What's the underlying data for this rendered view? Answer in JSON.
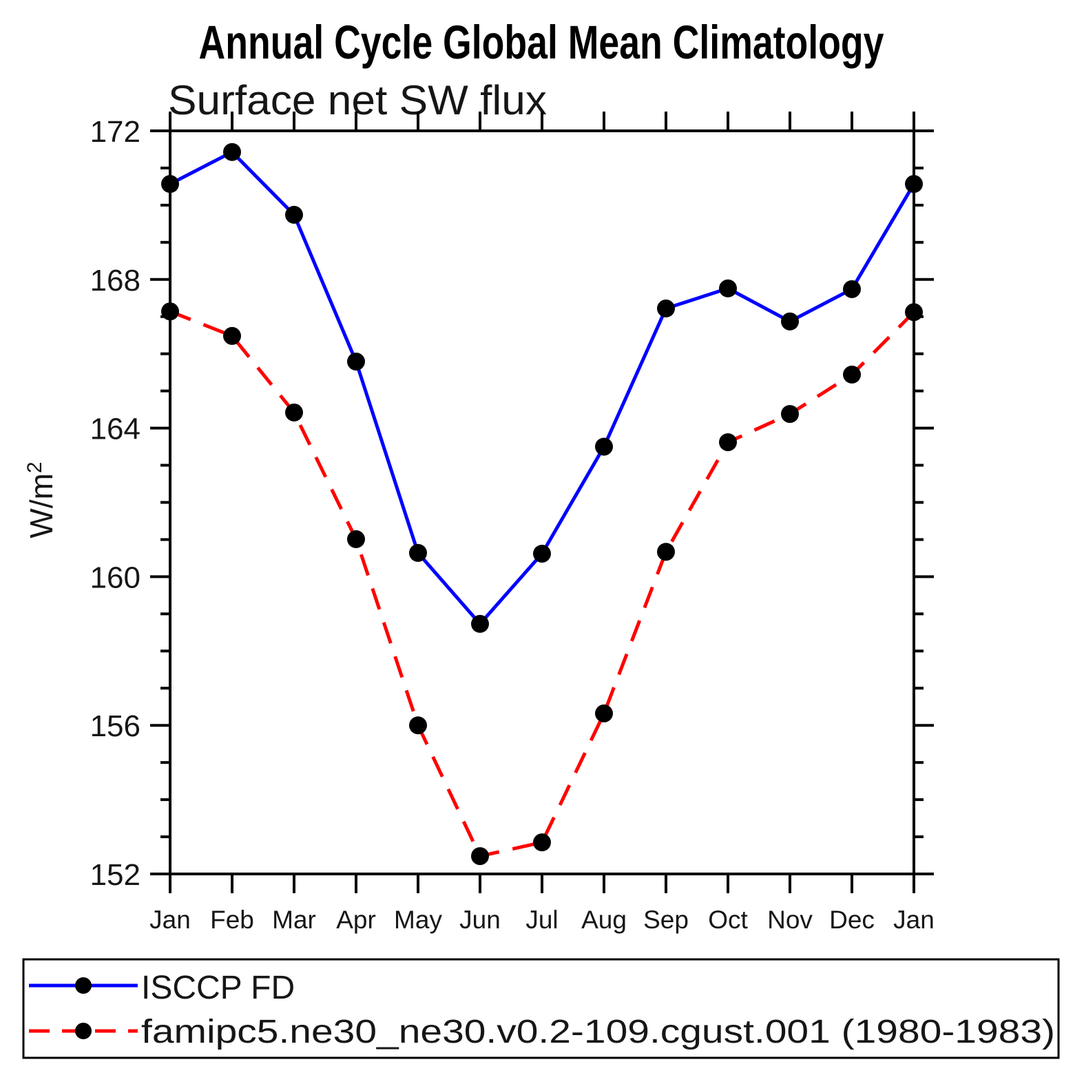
{
  "title": "Annual Cycle Global Mean Climatology",
  "subtitle": "Surface net SW flux",
  "axes": {
    "x": {
      "labels": [
        "Jan",
        "Feb",
        "Mar",
        "Apr",
        "May",
        "Jun",
        "Jul",
        "Aug",
        "Sep",
        "Oct",
        "Nov",
        "Dec",
        "Jan"
      ]
    },
    "y": {
      "labels": [
        "172",
        "168",
        "164",
        "160",
        "156",
        "152"
      ],
      "title_base": "W/m",
      "title_exp": "2",
      "min": 152,
      "max": 172,
      "major_step": 4,
      "minor_step": 1
    }
  },
  "legend": {
    "entries": [
      {
        "label": "ISCCP FD"
      },
      {
        "label": "famipc5.ne30_ne30.v0.2-109.cgust.001 (1980-1983)"
      }
    ]
  },
  "chart_data": {
    "type": "line",
    "title": "Annual Cycle Global Mean Climatology",
    "subtitle": "Surface net SW flux",
    "xlabel": "",
    "ylabel": "W/m^2",
    "categories": [
      "Jan",
      "Feb",
      "Mar",
      "Apr",
      "May",
      "Jun",
      "Jul",
      "Aug",
      "Sep",
      "Oct",
      "Nov",
      "Dec",
      "Jan"
    ],
    "ylim": [
      152,
      172
    ],
    "ytick_major": [
      152,
      156,
      160,
      164,
      168,
      172
    ],
    "ytick_minor_step": 1,
    "grid": false,
    "legend_position": "bottom",
    "colors": {
      "frame": "#000000",
      "marker": "#000000"
    },
    "series": [
      {
        "name": "ISCCP FD",
        "color": "#0000ff",
        "style": "solid",
        "marker": "circle",
        "marker_color": "#000000",
        "values": [
          170.57,
          171.43,
          169.74,
          165.79,
          160.64,
          158.73,
          160.62,
          163.5,
          167.22,
          167.76,
          166.87,
          167.74,
          170.57
        ]
      },
      {
        "name": "famipc5.ne30_ne30.v0.2-109.cgust.001 (1980-1983)",
        "color": "#ff0000",
        "style": "dashed",
        "marker": "circle",
        "marker_color": "#000000",
        "values": [
          167.14,
          166.48,
          164.42,
          161.01,
          156.0,
          152.48,
          152.85,
          156.32,
          160.67,
          163.62,
          164.38,
          165.44,
          167.12
        ]
      }
    ]
  }
}
